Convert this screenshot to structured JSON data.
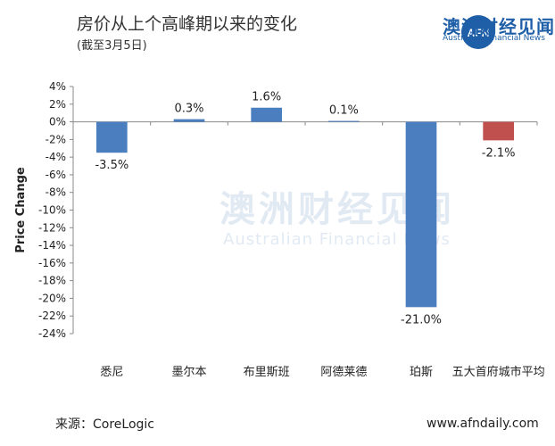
{
  "header": {
    "title": "房价从上个高峰期以来的变化",
    "subtitle": "(截至3月5日)"
  },
  "brand": {
    "name_cn": "澳洲财经见闻",
    "name_en": "Australian Financial News",
    "logo_mark": "AFN",
    "color": "#1f5fa8"
  },
  "footer": {
    "source": "来源：CoreLogic",
    "website": "www.afndaily.com"
  },
  "chart_data": {
    "type": "bar",
    "title": "房价从上个高峰期以来的变化",
    "ylabel": "Price Change",
    "xlabel": "",
    "categories": [
      "悉尼",
      "墨尔本",
      "布里斯班",
      "阿德莱德",
      "珀斯",
      "五大首府城市平均"
    ],
    "values": [
      -3.5,
      0.3,
      1.6,
      0.1,
      -21.0,
      -2.1
    ],
    "value_labels": [
      "-3.5%",
      "0.3%",
      "1.6%",
      "0.1%",
      "-21.0%",
      "-2.1%"
    ],
    "colors": [
      "#4a7ebf",
      "#4a7ebf",
      "#4a7ebf",
      "#4a7ebf",
      "#4a7ebf",
      "#c0504d"
    ],
    "ylim": [
      -24,
      4
    ],
    "yticks": [
      4,
      2,
      0,
      -2,
      -4,
      -6,
      -8,
      -10,
      -12,
      -14,
      -16,
      -18,
      -20,
      -22,
      -24
    ],
    "ytick_labels": [
      "4%",
      "2%",
      "0%",
      "-2%",
      "-4%",
      "-6%",
      "-8%",
      "-10%",
      "-12%",
      "-14%",
      "-16%",
      "-18%",
      "-20%",
      "-22%",
      "-24%"
    ],
    "grid": false,
    "legend": "none"
  }
}
